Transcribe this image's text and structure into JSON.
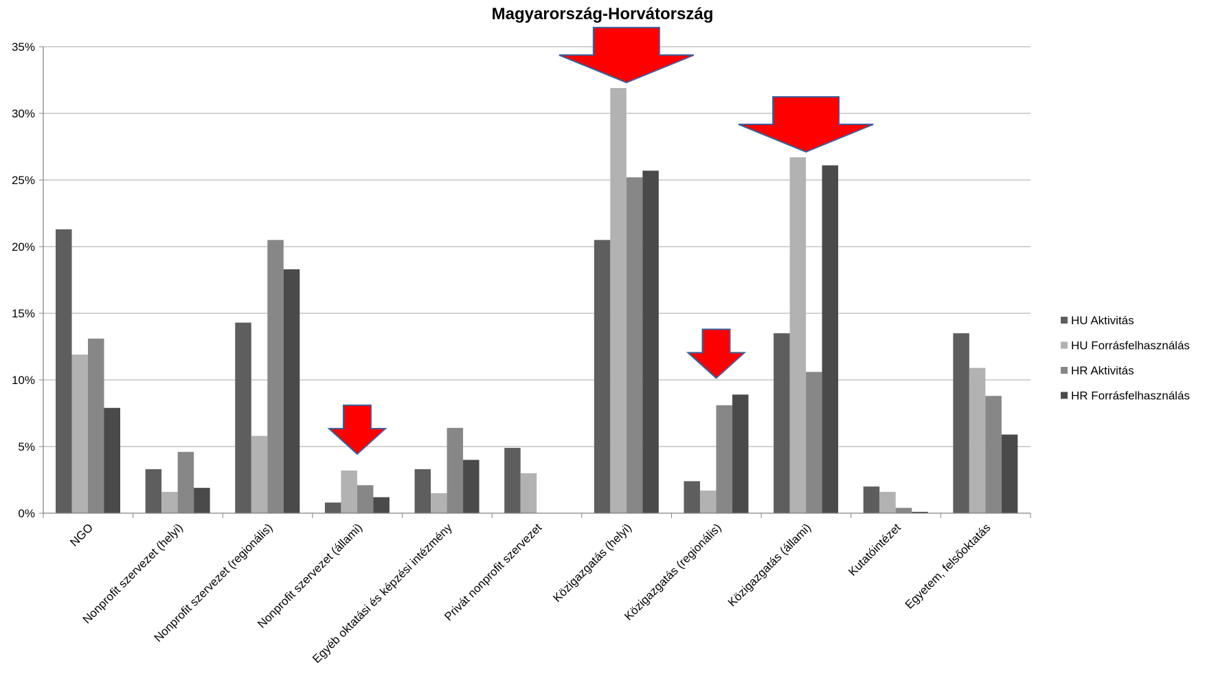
{
  "chart_data": {
    "type": "bar",
    "title": "Magyarország-Horvátország",
    "xlabel": "",
    "ylabel": "",
    "ylim": [
      0,
      35
    ],
    "yticks": [
      "0%",
      "5%",
      "10%",
      "15%",
      "20%",
      "25%",
      "30%",
      "35%"
    ],
    "grid": true,
    "legend_position": "right",
    "categories": [
      "NGO",
      "Nonprofit szervezet (helyi)",
      "Nonprofit szervezet (regionális)",
      "Nonprofit szervezet (állami)",
      "Egyéb oktatási és képzési intézmény",
      "Privát nonprofit szervezet",
      "Közigazgatás (helyi)",
      "Közigazgatás (regionális)",
      "Közigazgatás (állami)",
      "Kutatóintézet",
      "Egyetem, felsőoktatás"
    ],
    "series": [
      {
        "name": "HU Aktivitás",
        "color": "#5e5e5e",
        "values": [
          21.3,
          3.3,
          14.3,
          0.8,
          3.3,
          4.9,
          20.5,
          2.4,
          13.5,
          2.0,
          13.5
        ]
      },
      {
        "name": "HU Forrásfelhasználás",
        "color": "#b2b2b2",
        "values": [
          11.9,
          1.6,
          5.8,
          3.2,
          1.5,
          3.0,
          31.9,
          1.7,
          26.7,
          1.6,
          10.9
        ]
      },
      {
        "name": "HR Aktivitás",
        "color": "#878787",
        "values": [
          13.1,
          4.6,
          20.5,
          2.1,
          6.4,
          0,
          25.2,
          8.1,
          10.6,
          0.4,
          8.8
        ]
      },
      {
        "name": "HR Forrásfelhasználás",
        "color": "#4a4a4a",
        "values": [
          7.9,
          1.9,
          18.3,
          1.2,
          4.0,
          0,
          25.7,
          8.9,
          26.1,
          0.1,
          5.9
        ]
      }
    ],
    "annotations": [
      {
        "type": "down-arrow",
        "category": "Nonprofit szervezet (állami)",
        "size": "small",
        "color": "#ff0000"
      },
      {
        "type": "down-arrow",
        "category": "Közigazgatás (helyi)",
        "size": "large",
        "color": "#ff0000"
      },
      {
        "type": "down-arrow",
        "category": "Közigazgatás (regionális)",
        "size": "small",
        "color": "#ff0000"
      },
      {
        "type": "down-arrow",
        "category": "Közigazgatás (állami)",
        "size": "large",
        "color": "#ff0000"
      }
    ]
  }
}
